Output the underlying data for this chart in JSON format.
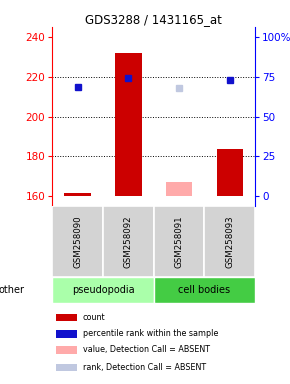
{
  "title": "GDS3288 / 1431165_at",
  "samples": [
    "GSM258090",
    "GSM258092",
    "GSM258091",
    "GSM258093"
  ],
  "groups": [
    "pseudopodia",
    "pseudopodia",
    "cell bodies",
    "cell bodies"
  ],
  "ylim": [
    155,
    245
  ],
  "yticks": [
    160,
    180,
    200,
    220,
    240
  ],
  "y2ticks_pct": [
    0,
    25,
    50,
    75,
    100
  ],
  "dotted_lines": [
    180,
    200,
    220
  ],
  "bar_values": [
    161.5,
    232,
    167,
    184
  ],
  "bar_absent": [
    false,
    false,
    true,
    false
  ],
  "bar_colors": [
    "#cc0000",
    "#cc0000",
    "#ffaaaa",
    "#cc0000"
  ],
  "rank_values": [
    215,
    219.5,
    214.5,
    218.5
  ],
  "rank_absent": [
    false,
    false,
    true,
    false
  ],
  "rank_color_present": "#1111cc",
  "rank_color_absent": "#c0c8e0",
  "baseline": 160,
  "pseudopodia_color": "#aaffaa",
  "cell_bodies_color": "#44cc44",
  "legend_items": [
    {
      "color": "#cc0000",
      "label": "count"
    },
    {
      "color": "#1111cc",
      "label": "percentile rank within the sample"
    },
    {
      "color": "#ffaaaa",
      "label": "value, Detection Call = ABSENT"
    },
    {
      "color": "#c0c8e0",
      "label": "rank, Detection Call = ABSENT"
    }
  ]
}
